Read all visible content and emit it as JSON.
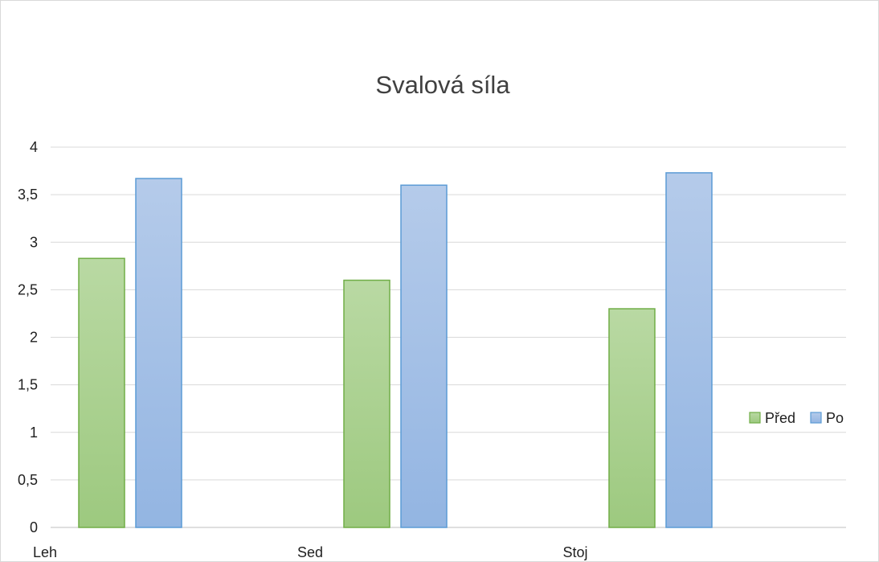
{
  "chart_data": {
    "type": "bar",
    "title": "Svalová síla",
    "xlabel": "",
    "ylabel": "",
    "categories": [
      "Leh",
      "Sed",
      "Stoj"
    ],
    "series": [
      {
        "name": "Před",
        "values": [
          2.83,
          2.6,
          2.3
        ],
        "color": "#a9d18e",
        "stroke": "#70ad47"
      },
      {
        "name": "Po",
        "values": [
          3.67,
          3.6,
          3.73
        ],
        "color": "#a9c4e8",
        "stroke": "#5b9bd5"
      }
    ],
    "ylim": [
      0,
      4
    ],
    "yticks": [
      "0",
      "0,5",
      "1",
      "1,5",
      "2",
      "2,5",
      "3",
      "3,5",
      "4"
    ],
    "grid": true,
    "legend_position": "right"
  }
}
